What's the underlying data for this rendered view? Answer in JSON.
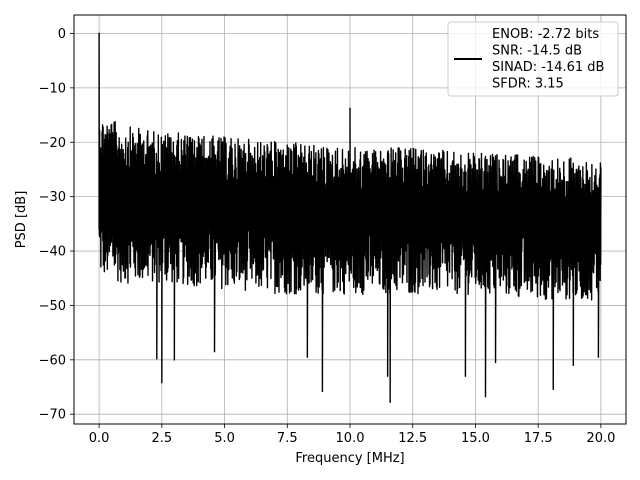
{
  "chart_data": {
    "type": "line",
    "title": "",
    "xlabel": "Frequency [MHz]",
    "ylabel": "PSD [dB]",
    "xlim": [
      -1.0,
      21.0
    ],
    "ylim": [
      -71.8,
      3.4
    ],
    "xticks": [
      0.0,
      2.5,
      5.0,
      7.5,
      10.0,
      12.5,
      15.0,
      17.5,
      20.0
    ],
    "xtick_labels": [
      "0.0",
      "2.5",
      "5.0",
      "7.5",
      "10.0",
      "12.5",
      "15.0",
      "17.5",
      "20.0"
    ],
    "yticks": [
      0,
      -10,
      -20,
      -30,
      -40,
      -50,
      -60,
      -70
    ],
    "ytick_labels": [
      "0",
      "−10",
      "−20",
      "−30",
      "−40",
      "−50",
      "−60",
      "−70"
    ],
    "grid": true,
    "legend_position": "top-right",
    "series": [
      {
        "color": "#000000",
        "legend_lines": [
          "ENOB: -2.72 bits",
          "SNR: -14.5 dB",
          "SINAD: -14.61 dB",
          "SFDR: 3.15"
        ],
        "peak": {
          "x": 0.0,
          "y": 0.0
        },
        "spur": {
          "x": 10.0,
          "y": -13.8
        },
        "noise_floor_upper": [
          {
            "x": 0.1,
            "y": -15
          },
          {
            "x": 1.0,
            "y": -17
          },
          {
            "x": 2.5,
            "y": -18
          },
          {
            "x": 5.0,
            "y": -19
          },
          {
            "x": 7.5,
            "y": -20
          },
          {
            "x": 10.0,
            "y": -21
          },
          {
            "x": 12.5,
            "y": -21
          },
          {
            "x": 15.0,
            "y": -22
          },
          {
            "x": 17.5,
            "y": -22.5
          },
          {
            "x": 20.0,
            "y": -23
          }
        ],
        "noise_floor_lower": [
          {
            "x": 0.1,
            "y": -45
          },
          {
            "x": 1.0,
            "y": -46
          },
          {
            "x": 2.5,
            "y": -46
          },
          {
            "x": 5.0,
            "y": -47
          },
          {
            "x": 7.5,
            "y": -48
          },
          {
            "x": 10.0,
            "y": -48
          },
          {
            "x": 12.5,
            "y": -48
          },
          {
            "x": 15.0,
            "y": -48
          },
          {
            "x": 17.5,
            "y": -49
          },
          {
            "x": 20.0,
            "y": -49
          }
        ],
        "notable_dips": [
          {
            "x": 2.5,
            "y": -64.2
          },
          {
            "x": 2.3,
            "y": -59.8
          },
          {
            "x": 3.0,
            "y": -60
          },
          {
            "x": 4.6,
            "y": -58.5
          },
          {
            "x": 8.9,
            "y": -65.8
          },
          {
            "x": 8.3,
            "y": -59.5
          },
          {
            "x": 11.6,
            "y": -67.8
          },
          {
            "x": 11.5,
            "y": -63
          },
          {
            "x": 14.6,
            "y": -63
          },
          {
            "x": 15.4,
            "y": -66.8
          },
          {
            "x": 15.8,
            "y": -60.5
          },
          {
            "x": 18.1,
            "y": -65.4
          },
          {
            "x": 18.9,
            "y": -61
          },
          {
            "x": 19.9,
            "y": -59.5
          }
        ]
      }
    ]
  }
}
